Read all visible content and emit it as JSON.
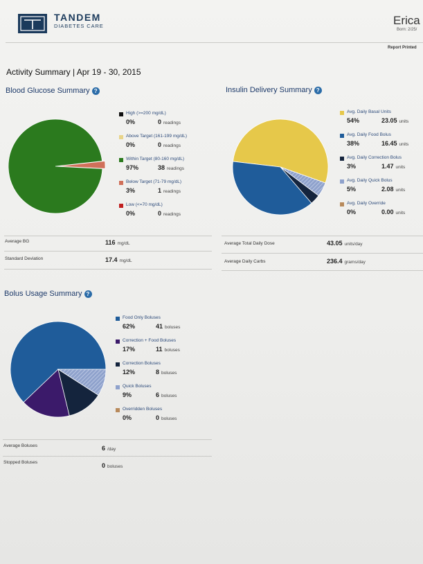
{
  "header": {
    "brand_name": "TANDEM",
    "brand_sub": "DIABETES CARE",
    "patient_name": "Erica",
    "born": "Born: 2/25/",
    "report_printed": "Report Printed"
  },
  "activity_title": "Activity Summary | Apr 19 - 30, 2015",
  "blood_glucose": {
    "title": "Blood Glucose Summary",
    "legend": [
      {
        "label": "High (>=200 mg/dL)",
        "pct": "0%",
        "value": "0",
        "unit": "readings",
        "color": "#111111"
      },
      {
        "label": "Above Target (161-199 mg/dL)",
        "pct": "0%",
        "value": "0",
        "unit": "readings",
        "color": "#e8d48a"
      },
      {
        "label": "Within Target (80-160 mg/dL)",
        "pct": "97%",
        "value": "38",
        "unit": "readings",
        "color": "#2b7a1e"
      },
      {
        "label": "Below Target (71-79 mg/dL)",
        "pct": "3%",
        "value": "1",
        "unit": "readings",
        "color": "#d0705a"
      },
      {
        "label": "Low (<=70 mg/dL)",
        "pct": "0%",
        "value": "0",
        "unit": "readings",
        "color": "#c02020"
      }
    ],
    "stats": [
      {
        "label": "Average BG",
        "value": "116",
        "unit": "mg/dL"
      },
      {
        "label": "Standard Deviation",
        "value": "17.4",
        "unit": "mg/dL"
      }
    ]
  },
  "insulin": {
    "title": "Insulin Delivery Summary",
    "legend": [
      {
        "label": "Avg. Daily Basal Units",
        "pct": "54%",
        "value": "23.05",
        "unit": "units",
        "color": "#e6c84a"
      },
      {
        "label": "Avg. Daily Food Bolus",
        "pct": "38%",
        "value": "16.45",
        "unit": "units",
        "color": "#1f5c9a"
      },
      {
        "label": "Avg. Daily Correction Bolus",
        "pct": "3%",
        "value": "1.47",
        "unit": "units",
        "color": "#14243d"
      },
      {
        "label": "Avg. Daily Quick Bolus",
        "pct": "5%",
        "value": "2.08",
        "unit": "units",
        "color": "#8fa2cc"
      },
      {
        "label": "Avg. Daily Override",
        "pct": "0%",
        "value": "0.00",
        "unit": "units",
        "color": "#b88a5c"
      }
    ],
    "stats": [
      {
        "label": "Average Total Daily Dose",
        "value": "43.05",
        "unit": "units/day"
      },
      {
        "label": "Average Daily Carbs",
        "value": "236.4",
        "unit": "grams/day"
      }
    ]
  },
  "bolus": {
    "title": "Bolus Usage Summary",
    "legend": [
      {
        "label": "Food Only Boluses",
        "pct": "62%",
        "value": "41",
        "unit": "boluses",
        "color": "#1f5c9a"
      },
      {
        "label": "Correction + Food Boluses",
        "pct": "17%",
        "value": "11",
        "unit": "boluses",
        "color": "#3b1a6a"
      },
      {
        "label": "Correction Boluses",
        "pct": "12%",
        "value": "8",
        "unit": "boluses",
        "color": "#14243d"
      },
      {
        "label": "Quick Boluses",
        "pct": "9%",
        "value": "6",
        "unit": "boluses",
        "color": "#8fa2cc"
      },
      {
        "label": "Overridden Boluses",
        "pct": "0%",
        "value": "0",
        "unit": "boluses",
        "color": "#b88a5c"
      }
    ],
    "stats": [
      {
        "label": "Average Boluses",
        "value": "6",
        "unit": "/day"
      },
      {
        "label": "Stopped Boluses",
        "value": "0",
        "unit": "boluses"
      }
    ]
  },
  "chart_data": [
    {
      "type": "pie",
      "title": "Blood Glucose Summary",
      "categories": [
        "High (>=200 mg/dL)",
        "Above Target (161-199 mg/dL)",
        "Within Target (80-160 mg/dL)",
        "Below Target (71-79 mg/dL)",
        "Low (<=70 mg/dL)"
      ],
      "values": [
        0,
        0,
        38,
        1,
        0
      ]
    },
    {
      "type": "pie",
      "title": "Insulin Delivery Summary",
      "categories": [
        "Avg. Daily Basal Units",
        "Avg. Daily Food Bolus",
        "Avg. Daily Correction Bolus",
        "Avg. Daily Quick Bolus",
        "Avg. Daily Override"
      ],
      "values": [
        23.05,
        16.45,
        1.47,
        2.08,
        0.0
      ]
    },
    {
      "type": "pie",
      "title": "Bolus Usage Summary",
      "categories": [
        "Food Only Boluses",
        "Correction + Food Boluses",
        "Correction Boluses",
        "Quick Boluses",
        "Overridden Boluses"
      ],
      "values": [
        41,
        11,
        8,
        6,
        0
      ]
    }
  ]
}
